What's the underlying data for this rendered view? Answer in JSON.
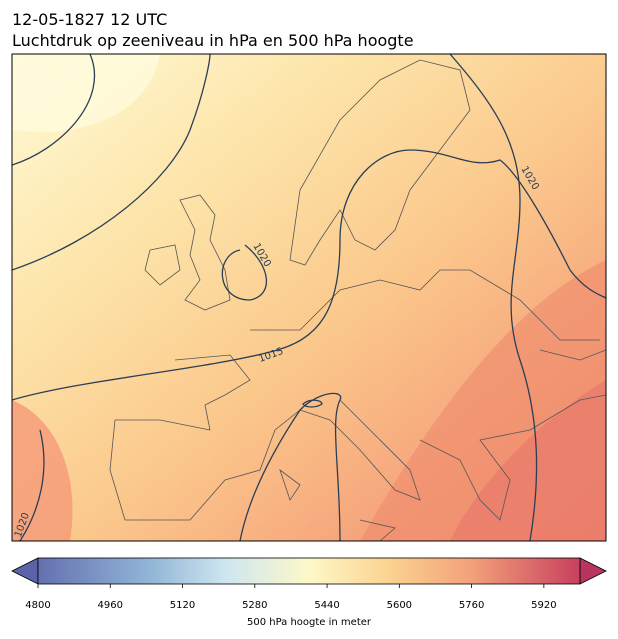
{
  "title": {
    "line1": "12-05-1827 12 UTC",
    "line2": "Luchtdruk op zeeniveau in hPa en 500 hPa hoogte"
  },
  "contour_labels": [
    "1020",
    "1020",
    "1015",
    "1020"
  ],
  "colorbar": {
    "lim": [
      4800,
      6000
    ],
    "ticks": [
      4800,
      4960,
      5120,
      5280,
      5440,
      5600,
      5760,
      5920
    ],
    "label": "500 hPa hoogte in meter"
  }
}
